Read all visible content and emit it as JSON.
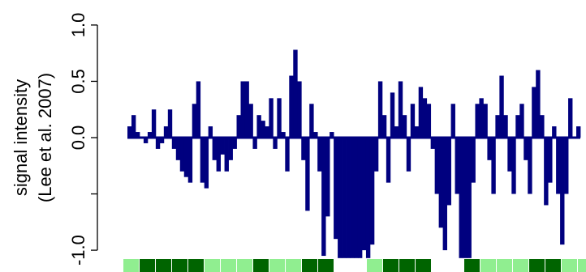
{
  "chart_data": {
    "type": "bar",
    "y_label_lines": [
      "signal intensity",
      "(Lee et al. 2007)"
    ],
    "color": "#00007f",
    "ylim": [
      -1.1,
      1.1
    ],
    "yticks": [
      {
        "value": -1.0,
        "label": "-1.0"
      },
      {
        "value": -0.5,
        "label": null
      },
      {
        "value": 0.0,
        "label": "0.0"
      },
      {
        "value": 0.5,
        "label": "0.5"
      },
      {
        "value": 1.0,
        "label": "1.0"
      }
    ],
    "values": [
      0.1,
      0.2,
      0.05,
      0.0,
      -0.05,
      0.05,
      0.25,
      -0.1,
      -0.05,
      0.1,
      0.25,
      -0.1,
      -0.2,
      -0.3,
      -0.35,
      -0.4,
      0.3,
      0.5,
      -0.4,
      -0.45,
      0.1,
      -0.2,
      -0.3,
      -0.15,
      -0.3,
      -0.2,
      -0.1,
      0.2,
      0.5,
      0.5,
      0.3,
      -0.1,
      0.2,
      0.15,
      0.1,
      0.35,
      -0.1,
      0.35,
      0.05,
      -0.3,
      0.55,
      0.78,
      0.5,
      -0.2,
      -0.65,
      0.3,
      0.05,
      -0.3,
      -1.05,
      -0.7,
      0.05,
      -0.9,
      -1.07,
      -1.07,
      -1.07,
      -1.07,
      -1.07,
      -1.07,
      -1.0,
      -1.07,
      -0.95,
      -0.3,
      0.5,
      0.2,
      -0.4,
      0.4,
      0.1,
      0.5,
      0.2,
      -0.3,
      0.3,
      0.1,
      0.45,
      0.35,
      0.3,
      -0.1,
      -0.5,
      -0.8,
      -1.0,
      -0.6,
      0.3,
      -0.5,
      -1.07,
      -1.07,
      -1.07,
      -0.4,
      0.3,
      0.35,
      0.3,
      -0.2,
      -0.5,
      0.2,
      0.55,
      0.2,
      -0.3,
      -0.5,
      0.2,
      0.3,
      -0.2,
      -0.5,
      0.45,
      0.6,
      0.2,
      -0.6,
      -0.4,
      0.1,
      -0.5,
      -0.95,
      -0.5,
      0.35,
      0.0,
      0.1
    ],
    "track_colors": [
      "#90ee90",
      "#006400",
      "#006400",
      "#006400",
      "#006400",
      "#90ee90",
      "#90ee90",
      "#90ee90",
      "#006400",
      "#90ee90",
      "#90ee90",
      "#006400",
      "#006400",
      "#ffffff",
      "#ffffff",
      "#90ee90",
      "#006400",
      "#006400",
      "#006400",
      "#ffffff",
      "#ffffff",
      "#006400",
      "#90ee90",
      "#90ee90",
      "#90ee90",
      "#006400",
      "#006400",
      "#90ee90",
      "#90ee90"
    ]
  }
}
